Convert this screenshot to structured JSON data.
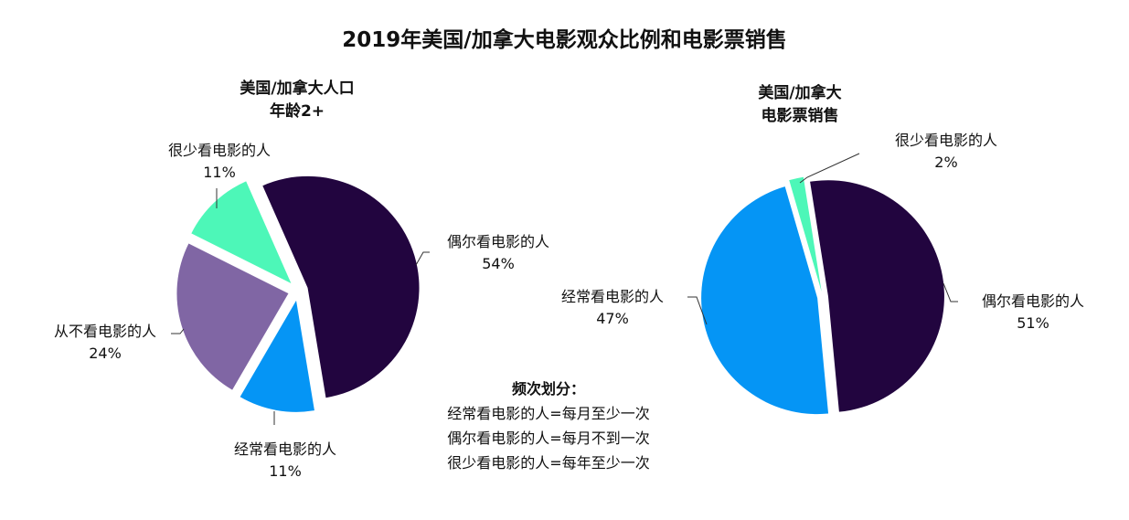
{
  "chart_data": [
    {
      "type": "pie",
      "title": "2019年美国/加拿大电影观众比例和电影票销售",
      "subtitle": [
        "美国/加拿大人口",
        "年龄2+"
      ],
      "slices": [
        {
          "label": "偶尔看电影的人",
          "value": 54,
          "display": "54%",
          "color": "#22053f"
        },
        {
          "label": "经常看电影的人",
          "value": 11,
          "display": "11%",
          "color": "#0595f5"
        },
        {
          "label": "从不看电影的人",
          "value": 24,
          "display": "24%",
          "color": "#8066a4"
        },
        {
          "label": "很少看电影的人",
          "value": 11,
          "display": "11%",
          "color": "#4df7b8"
        }
      ],
      "exploded": true
    },
    {
      "type": "pie",
      "subtitle": [
        "美国/加拿大",
        "电影票销售"
      ],
      "slices": [
        {
          "label": "偶尔看电影的人",
          "value": 51,
          "display": "51%",
          "color": "#22053f"
        },
        {
          "label": "经常看电影的人",
          "value": 47,
          "display": "47%",
          "color": "#0595f5"
        },
        {
          "label": "很少看电影的人",
          "value": 2,
          "display": "2%",
          "color": "#4df7b8"
        }
      ],
      "exploded": true
    }
  ],
  "legend": {
    "heading": "频次划分：",
    "lines": [
      "经常看电影的人=每月至少一次",
      "偶尔看电影的人=每月不到一次",
      "很少看电影的人=每年至少一次"
    ]
  }
}
